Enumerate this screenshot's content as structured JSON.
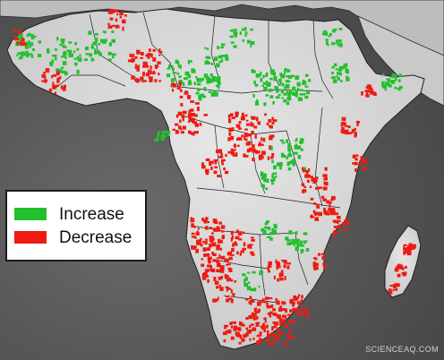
{
  "legend": {
    "items": [
      {
        "label": "Increase",
        "color": "#22c02e"
      },
      {
        "label": "Decrease",
        "color": "#ee1b12"
      }
    ]
  },
  "watermark": {
    "text": "SCIENCEAQ.COM"
  },
  "colors": {
    "ocean": "#5b5b5b",
    "land": "#d9d9d9",
    "border": "#1e1e1e",
    "increase": "#22c02e",
    "decrease": "#ee1b12"
  }
}
